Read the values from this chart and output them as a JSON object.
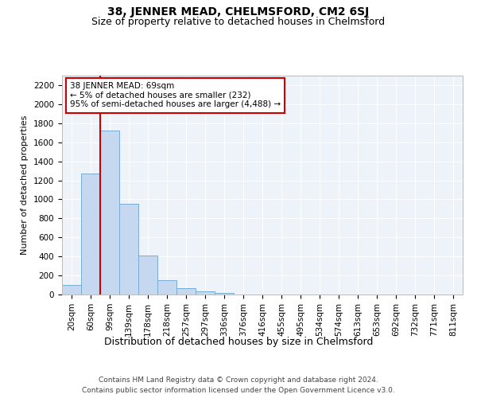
{
  "title": "38, JENNER MEAD, CHELMSFORD, CM2 6SJ",
  "subtitle": "Size of property relative to detached houses in Chelmsford",
  "xlabel": "Distribution of detached houses by size in Chelmsford",
  "ylabel": "Number of detached properties",
  "categories": [
    "20sqm",
    "60sqm",
    "99sqm",
    "139sqm",
    "178sqm",
    "218sqm",
    "257sqm",
    "297sqm",
    "336sqm",
    "376sqm",
    "416sqm",
    "455sqm",
    "495sqm",
    "534sqm",
    "574sqm",
    "613sqm",
    "653sqm",
    "692sqm",
    "732sqm",
    "771sqm",
    "811sqm"
  ],
  "values": [
    100,
    1270,
    1720,
    950,
    410,
    150,
    70,
    30,
    20,
    0,
    0,
    0,
    0,
    0,
    0,
    0,
    0,
    0,
    0,
    0,
    0
  ],
  "bar_color": "#c5d8f0",
  "bar_edge_color": "#7aadd4",
  "vline_x": 1.5,
  "vline_color": "#cc0000",
  "annotation_text": "38 JENNER MEAD: 69sqm\n← 5% of detached houses are smaller (232)\n95% of semi-detached houses are larger (4,488) →",
  "annotation_box_color": "white",
  "annotation_box_edgecolor": "#cc0000",
  "ylim": [
    0,
    2300
  ],
  "yticks": [
    0,
    200,
    400,
    600,
    800,
    1000,
    1200,
    1400,
    1600,
    1800,
    2000,
    2200
  ],
  "footer_line1": "Contains HM Land Registry data © Crown copyright and database right 2024.",
  "footer_line2": "Contains public sector information licensed under the Open Government Licence v3.0.",
  "background_color": "#eef2f9",
  "grid_color": "white",
  "title_fontsize": 10,
  "subtitle_fontsize": 9,
  "ylabel_fontsize": 8,
  "xlabel_fontsize": 9,
  "tick_fontsize": 7.5,
  "footer_fontsize": 6.5
}
